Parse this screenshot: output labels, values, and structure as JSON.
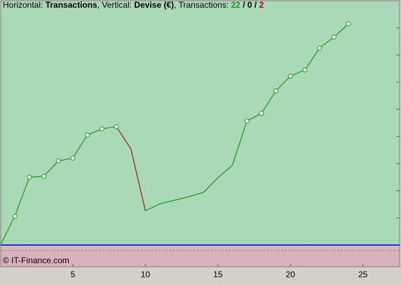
{
  "chart_data": {
    "type": "line",
    "header": [
      {
        "text": "Horizontal: ",
        "bold": false,
        "color": "#000000"
      },
      {
        "text": "Transactions",
        "bold": true,
        "color": "#000000"
      },
      {
        "text": ", Vertical: ",
        "bold": false,
        "color": "#000000"
      },
      {
        "text": "Devise (€)",
        "bold": true,
        "color": "#000000"
      },
      {
        "text": ", Transactions: ",
        "bold": false,
        "color": "#000000"
      },
      {
        "text": "22",
        "bold": true,
        "color": "#1a9a1a"
      },
      {
        "text": " / ",
        "bold": true,
        "color": "#000000"
      },
      {
        "text": "0",
        "bold": true,
        "color": "#000000"
      },
      {
        "text": " / ",
        "bold": true,
        "color": "#000000"
      },
      {
        "text": "2",
        "bold": true,
        "color": "#c00000"
      }
    ],
    "watermark": "© IT-Finance.com",
    "x": [
      0,
      1,
      2,
      3,
      4,
      5,
      6,
      7,
      8,
      9,
      10,
      11,
      12,
      13,
      14,
      15,
      16,
      17,
      18,
      19,
      20,
      21,
      22,
      23,
      24
    ],
    "series": [
      {
        "color": "#1a9a1a",
        "values": [
          0,
          1.06,
          2.5,
          2.53,
          3.1,
          3.2,
          4.05,
          4.28,
          4.36,
          null,
          1.26,
          1.52,
          1.65,
          1.78,
          1.94,
          2.48,
          2.94,
          4.57,
          4.85,
          5.68,
          6.22,
          6.45,
          7.25,
          7.66,
          8.15
        ],
        "markers": [
          false,
          true,
          true,
          true,
          true,
          true,
          true,
          true,
          true,
          false,
          false,
          false,
          false,
          false,
          false,
          false,
          false,
          true,
          true,
          true,
          true,
          true,
          true,
          true,
          true
        ]
      },
      {
        "color": "#a01818",
        "values": [
          null,
          null,
          null,
          null,
          null,
          null,
          null,
          null,
          4.36,
          3.54,
          1.26,
          null,
          null,
          null,
          null,
          null,
          null,
          null,
          null,
          null,
          null,
          null,
          null,
          null,
          null
        ]
      }
    ],
    "xlim": [
      0,
      27.5
    ],
    "xticks": [
      5,
      10,
      15,
      20,
      25
    ],
    "ylim": [
      -0.8,
      9
    ],
    "yticks": [
      1,
      2,
      3,
      4,
      5,
      6,
      7,
      8
    ]
  }
}
